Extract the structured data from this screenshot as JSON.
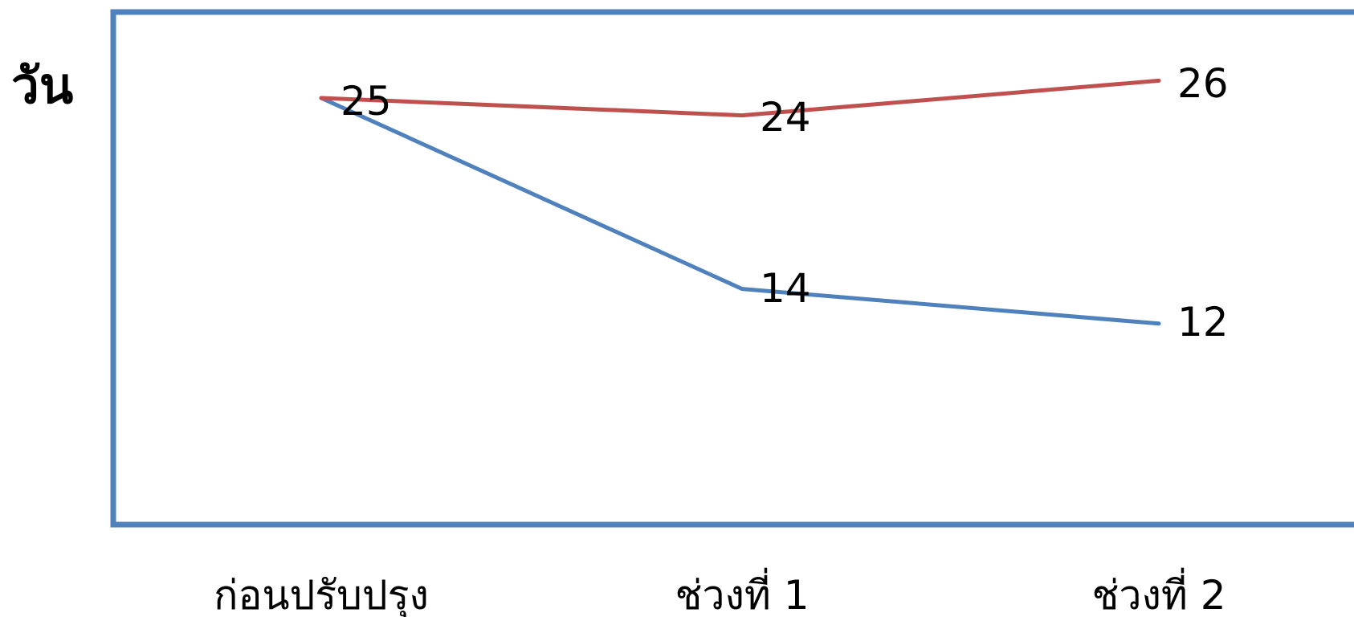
{
  "chart_data": {
    "type": "line",
    "title": "",
    "xlabel": "",
    "ylabel": "วัน",
    "categories": [
      "ก่อนปรับปรุง",
      "ช่วงที่ 1",
      "ช่วงที่ 2"
    ],
    "series": [
      {
        "color": "#4f81bd",
        "values": [
          25,
          14,
          12
        ]
      },
      {
        "color": "#c0504d",
        "values": [
          25,
          24,
          26
        ]
      }
    ],
    "data_labels": [
      25,
      24,
      26,
      14,
      12
    ],
    "frame_color": "#4f81bd",
    "grid": false,
    "legend": "none"
  }
}
